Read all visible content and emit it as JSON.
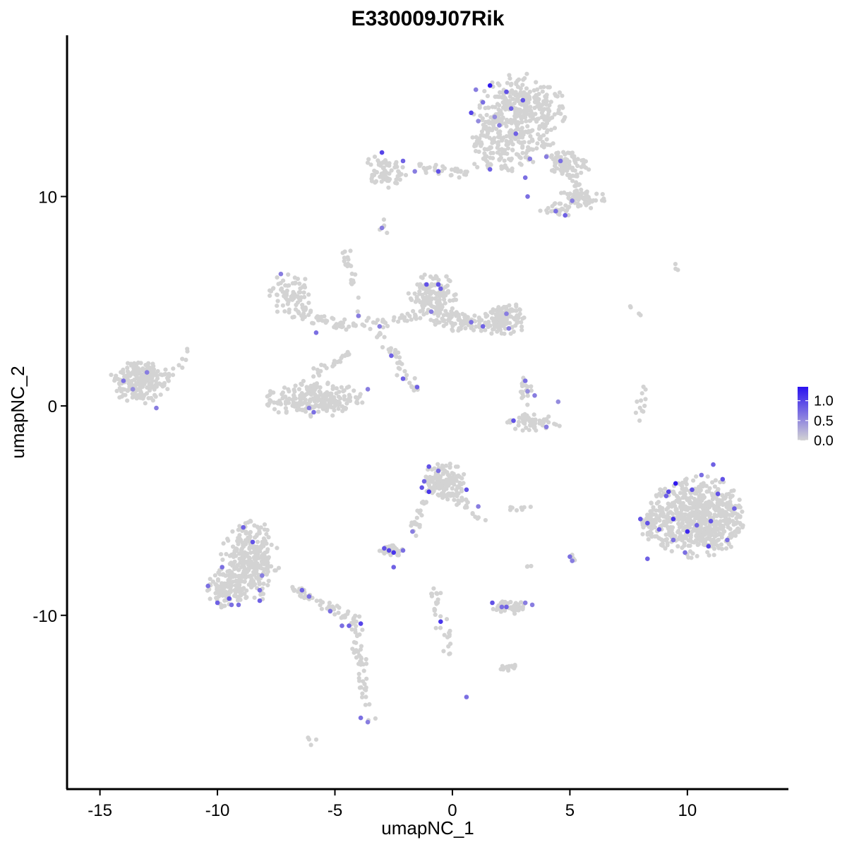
{
  "chart_data": {
    "type": "scatter",
    "title": "E330009J07Rik",
    "xlabel": "umapNC_1",
    "ylabel": "umapNC_2",
    "xlim": [
      -16.4,
      14.3
    ],
    "ylim": [
      -18.3,
      17.7
    ],
    "xticks": [
      -15,
      -10,
      -5,
      0,
      5,
      10
    ],
    "yticks": [
      -10,
      0,
      10
    ],
    "xtick_labels": [
      "-15",
      "-10",
      "-5",
      "0",
      "5",
      "10"
    ],
    "ytick_labels": [
      "-10",
      "0",
      "10"
    ],
    "grid": false,
    "legend_position": "right",
    "color_scale": {
      "low_color": "#d3d3d3",
      "high_color": "#2a12f0",
      "min": 0,
      "max": 1.35,
      "ticks": [
        0.0,
        0.5,
        1.0
      ],
      "tick_labels": [
        "0.0",
        "0.5",
        "1.0"
      ]
    },
    "point_color_background": "#d3d3d3",
    "clusters": [
      {
        "cx": 2.9,
        "cy": 14.0,
        "rx": 2.0,
        "ry": 1.9,
        "n": 350
      },
      {
        "cx": 2.2,
        "cy": 12.0,
        "rx": 1.6,
        "ry": 0.9,
        "n": 90
      },
      {
        "cx": 4.8,
        "cy": 11.6,
        "rx": 1.2,
        "ry": 0.6,
        "n": 60
      },
      {
        "cx": 5.5,
        "cy": 9.9,
        "rx": 1.1,
        "ry": 0.5,
        "n": 70
      },
      {
        "cx": 4.4,
        "cy": 9.3,
        "rx": 0.7,
        "ry": 0.4,
        "n": 25
      },
      {
        "cx": -2.9,
        "cy": 11.2,
        "rx": 1.0,
        "ry": 0.8,
        "n": 70
      },
      {
        "cx": -6.9,
        "cy": 5.3,
        "rx": 0.9,
        "ry": 1.1,
        "n": 80
      },
      {
        "cx": -0.8,
        "cy": 5.1,
        "rx": 1.1,
        "ry": 1.3,
        "n": 150
      },
      {
        "cx": 0.6,
        "cy": 4.0,
        "rx": 1.4,
        "ry": 0.5,
        "n": 80
      },
      {
        "cx": 2.2,
        "cy": 4.1,
        "rx": 0.9,
        "ry": 0.9,
        "n": 110
      },
      {
        "cx": -13.3,
        "cy": 1.2,
        "rx": 1.3,
        "ry": 1.1,
        "n": 200
      },
      {
        "cx": -5.9,
        "cy": 0.3,
        "rx": 2.1,
        "ry": 0.9,
        "n": 230
      },
      {
        "cx": 3.4,
        "cy": -0.8,
        "rx": 1.3,
        "ry": 0.45,
        "n": 60
      },
      {
        "cx": 3.1,
        "cy": 0.8,
        "rx": 0.3,
        "ry": 0.8,
        "n": 18
      },
      {
        "cx": -0.4,
        "cy": -3.6,
        "rx": 1.0,
        "ry": 0.9,
        "n": 130
      },
      {
        "cx": -2.6,
        "cy": -6.9,
        "rx": 0.5,
        "ry": 0.3,
        "n": 40
      },
      {
        "cx": 10.4,
        "cy": -5.3,
        "rx": 2.1,
        "ry": 2.0,
        "n": 650
      },
      {
        "cx": 8.4,
        "cy": -5.8,
        "rx": 0.4,
        "ry": 0.7,
        "n": 40
      },
      {
        "cx": -8.6,
        "cy": -7.4,
        "rx": 1.3,
        "ry": 2.0,
        "n": 280
      },
      {
        "cx": -9.6,
        "cy": -8.7,
        "rx": 0.9,
        "ry": 1.0,
        "n": 110
      },
      {
        "cx": 2.5,
        "cy": -9.6,
        "rx": 0.8,
        "ry": 0.35,
        "n": 60
      },
      {
        "cx": 2.4,
        "cy": -12.5,
        "rx": 0.4,
        "ry": 0.2,
        "n": 20
      },
      {
        "cx": 5.1,
        "cy": -7.3,
        "rx": 0.15,
        "ry": 0.25,
        "n": 8
      }
    ],
    "trails": [
      {
        "x0": 1.0,
        "y0": 12.5,
        "x1": 2.0,
        "y1": 14.0,
        "n": 35
      },
      {
        "x0": -1.5,
        "y0": 11.4,
        "x1": 0.6,
        "y1": 11.1,
        "n": 30
      },
      {
        "x0": 3.8,
        "y0": 12.8,
        "x1": 5.8,
        "y1": 9.8,
        "n": 40
      },
      {
        "x0": -6.8,
        "y0": 4.5,
        "x1": -4.5,
        "y1": 3.8,
        "n": 40
      },
      {
        "x0": -4.5,
        "y0": 3.8,
        "x1": -1.3,
        "y1": 4.3,
        "n": 35
      },
      {
        "x0": -4.6,
        "y0": 7.5,
        "x1": -3.7,
        "y1": 3.8,
        "n": 25
      },
      {
        "x0": -3.2,
        "y0": 3.5,
        "x1": -1.5,
        "y1": 0.8,
        "n": 35
      },
      {
        "x0": -4.3,
        "y0": 2.6,
        "x1": -6.2,
        "y1": 1.3,
        "n": 25
      },
      {
        "x0": -12.2,
        "y0": 1.2,
        "x1": -11.2,
        "y1": 2.7,
        "n": 12
      },
      {
        "x0": -6.8,
        "y0": -8.7,
        "x1": -3.9,
        "y1": -10.4,
        "n": 55
      },
      {
        "x0": -4.2,
        "y0": -10.4,
        "x1": -3.5,
        "y1": -15.1,
        "n": 50
      },
      {
        "x0": -1.2,
        "y0": -4.5,
        "x1": -1.7,
        "y1": -6.0,
        "n": 20
      },
      {
        "x0": 0.1,
        "y0": -4.2,
        "x1": 1.2,
        "y1": -5.5,
        "n": 25
      },
      {
        "x0": -0.8,
        "y0": -8.8,
        "x1": -0.5,
        "y1": -10.6,
        "n": 18
      },
      {
        "x0": -0.3,
        "y0": -10.6,
        "x1": -0.1,
        "y1": -11.9,
        "n": 12
      },
      {
        "x0": 7.9,
        "y0": -0.5,
        "x1": 8.2,
        "y1": 0.9,
        "n": 12
      },
      {
        "x0": 2.4,
        "y0": -5.0,
        "x1": 3.4,
        "y1": -4.9,
        "n": 8
      },
      {
        "x0": 7.6,
        "y0": 4.8,
        "x1": 7.8,
        "y1": 4.3,
        "n": 4
      },
      {
        "x0": 9.4,
        "y0": 6.7,
        "x1": 9.6,
        "y1": 6.7,
        "n": 3
      },
      {
        "x0": -3.0,
        "y0": 8.3,
        "x1": -2.7,
        "y1": 8.6,
        "n": 5
      },
      {
        "x0": -6.1,
        "y0": -16.1,
        "x1": -5.9,
        "y1": -15.9,
        "n": 4
      },
      {
        "x0": 3.2,
        "y0": -7.6,
        "x1": 3.3,
        "y1": -8.0,
        "n": 3
      }
    ],
    "expressing_points": [
      [
        1.0,
        15.1
      ],
      [
        1.6,
        15.3
      ],
      [
        2.3,
        15.0
      ],
      [
        1.3,
        14.5
      ],
      [
        2.5,
        14.2
      ],
      [
        1.8,
        13.8
      ],
      [
        0.8,
        14.0
      ],
      [
        3.0,
        14.6
      ],
      [
        2.0,
        13.4
      ],
      [
        2.7,
        13.0
      ],
      [
        1.1,
        13.6
      ],
      [
        -3.0,
        12.1
      ],
      [
        -2.1,
        11.7
      ],
      [
        -1.6,
        11.2
      ],
      [
        -0.6,
        11.2
      ],
      [
        1.6,
        11.3
      ],
      [
        3.1,
        10.9
      ],
      [
        3.3,
        11.8
      ],
      [
        4.0,
        11.9
      ],
      [
        4.6,
        11.7
      ],
      [
        3.2,
        10.0
      ],
      [
        5.1,
        9.8
      ],
      [
        4.8,
        9.1
      ],
      [
        4.4,
        9.3
      ],
      [
        -3.0,
        8.5
      ],
      [
        -7.3,
        6.3
      ],
      [
        -3.1,
        3.8
      ],
      [
        -5.8,
        3.5
      ],
      [
        -4.0,
        4.3
      ],
      [
        -1.1,
        5.8
      ],
      [
        -0.6,
        5.8
      ],
      [
        -0.5,
        5.6
      ],
      [
        -0.9,
        4.5
      ],
      [
        0.8,
        4.0
      ],
      [
        1.3,
        3.8
      ],
      [
        2.3,
        4.4
      ],
      [
        2.4,
        3.7
      ],
      [
        -2.6,
        2.4
      ],
      [
        -2.1,
        1.3
      ],
      [
        -1.5,
        0.9
      ],
      [
        -14.0,
        1.2
      ],
      [
        -13.0,
        1.6
      ],
      [
        -13.6,
        0.8
      ],
      [
        -12.6,
        -0.1
      ],
      [
        -6.1,
        -0.1
      ],
      [
        -5.9,
        -0.3
      ],
      [
        -3.6,
        0.8
      ],
      [
        3.1,
        1.2
      ],
      [
        3.2,
        0.7
      ],
      [
        3.5,
        0.5
      ],
      [
        4.5,
        0.2
      ],
      [
        2.6,
        -0.7
      ],
      [
        4.0,
        -1.0
      ],
      [
        -1.0,
        -2.9
      ],
      [
        -1.3,
        -3.9
      ],
      [
        -1.0,
        -4.1
      ],
      [
        -1.2,
        -3.6
      ],
      [
        -0.6,
        -3.1
      ],
      [
        0.6,
        -4.0
      ],
      [
        1.1,
        -4.8
      ],
      [
        -1.7,
        -6.0
      ],
      [
        -2.9,
        -6.8
      ],
      [
        -2.7,
        -6.9
      ],
      [
        -2.5,
        -7.0
      ],
      [
        -2.1,
        -6.9
      ],
      [
        -2.5,
        -7.7
      ],
      [
        9.5,
        -3.7
      ],
      [
        9.2,
        -4.1
      ],
      [
        10.2,
        -4.0
      ],
      [
        11.3,
        -4.2
      ],
      [
        11.1,
        -2.8
      ],
      [
        10.6,
        -3.3
      ],
      [
        9.4,
        -5.4
      ],
      [
        10.4,
        -5.7
      ],
      [
        11.0,
        -5.5
      ],
      [
        11.7,
        -6.4
      ],
      [
        12.0,
        -4.9
      ],
      [
        8.0,
        -5.4
      ],
      [
        8.3,
        -5.6
      ],
      [
        8.8,
        -5.9
      ],
      [
        9.4,
        -6.4
      ],
      [
        10.0,
        -6.0
      ],
      [
        9.9,
        -7.0
      ],
      [
        10.9,
        -6.7
      ],
      [
        8.3,
        -7.3
      ],
      [
        11.5,
        -3.5
      ],
      [
        9.1,
        -4.3
      ],
      [
        5.0,
        -7.2
      ],
      [
        5.1,
        -7.4
      ],
      [
        -8.9,
        -5.8
      ],
      [
        -8.5,
        -6.5
      ],
      [
        -9.8,
        -7.7
      ],
      [
        -10.4,
        -8.6
      ],
      [
        -9.5,
        -9.2
      ],
      [
        -10.0,
        -9.4
      ],
      [
        -9.1,
        -9.5
      ],
      [
        -8.1,
        -8.1
      ],
      [
        -8.2,
        -8.8
      ],
      [
        -8.2,
        -9.3
      ],
      [
        -9.4,
        -9.5
      ],
      [
        -6.4,
        -8.8
      ],
      [
        -6.1,
        -9.1
      ],
      [
        -5.2,
        -9.8
      ],
      [
        -4.7,
        -10.5
      ],
      [
        -4.4,
        -10.5
      ],
      [
        -3.9,
        -10.4
      ],
      [
        -3.9,
        -14.9
      ],
      [
        -3.6,
        -15.1
      ],
      [
        1.7,
        -9.4
      ],
      [
        2.1,
        -9.6
      ],
      [
        2.3,
        -9.6
      ],
      [
        3.1,
        -9.4
      ],
      [
        3.4,
        -9.5
      ],
      [
        -0.5,
        -10.3
      ],
      [
        0.6,
        -13.9
      ]
    ],
    "expression_values": [
      0.6,
      1.3,
      0.9,
      0.7,
      0.8,
      0.5,
      1.0,
      0.9,
      0.6,
      0.8,
      0.5,
      1.0,
      0.8,
      0.6,
      0.9,
      0.8,
      0.7,
      0.6,
      0.6,
      0.7,
      0.7,
      0.6,
      0.8,
      0.7,
      0.6,
      0.6,
      0.6,
      0.7,
      0.6,
      0.9,
      0.9,
      0.8,
      0.6,
      0.7,
      0.8,
      0.6,
      0.6,
      0.8,
      0.8,
      0.8,
      0.7,
      0.6,
      0.5,
      0.6,
      0.6,
      0.7,
      0.6,
      0.7,
      0.5,
      0.6,
      0.5,
      0.9,
      0.6,
      0.9,
      0.9,
      1.1,
      0.8,
      0.7,
      0.9,
      0.6,
      0.6,
      0.9,
      1.0,
      1.1,
      0.7,
      0.8,
      1.3,
      1.0,
      0.9,
      0.9,
      0.8,
      0.7,
      1.1,
      0.8,
      0.9,
      0.7,
      0.8,
      0.9,
      0.9,
      0.8,
      0.7,
      1.2,
      0.7,
      1.0,
      0.8,
      0.9,
      0.8,
      0.7,
      0.6,
      0.8,
      0.9,
      0.7,
      0.7,
      0.9,
      0.8,
      0.7,
      0.6,
      0.7,
      0.8,
      0.7,
      0.8,
      0.7,
      0.7,
      0.7,
      0.8,
      1.0,
      0.7,
      0.6,
      0.9,
      0.7,
      0.8,
      0.6,
      0.6,
      1.1,
      0.7
    ]
  }
}
